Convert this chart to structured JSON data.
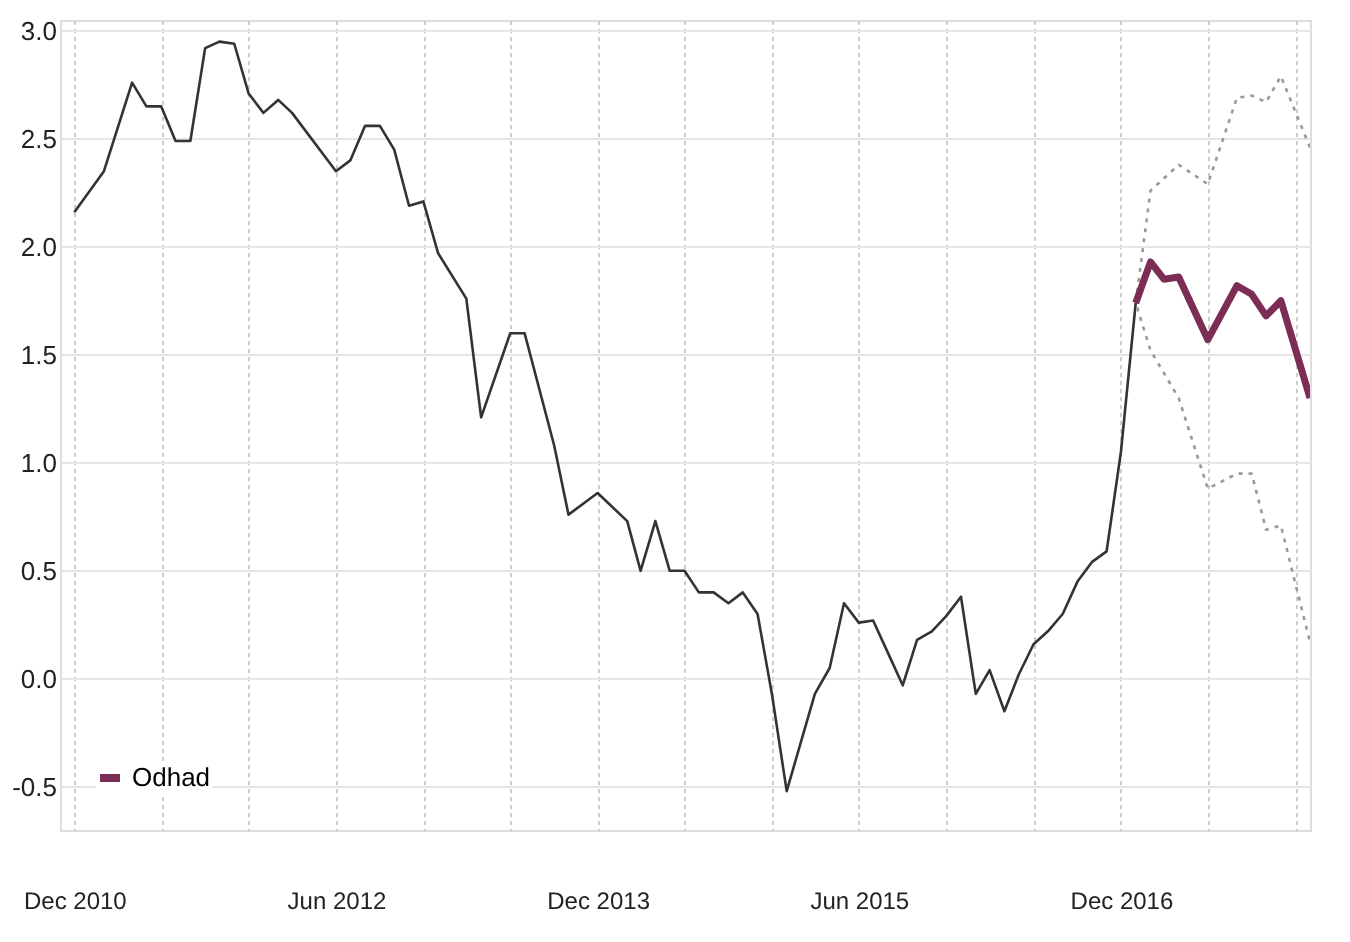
{
  "chart_data": {
    "type": "line",
    "xlim": [
      "2010-11",
      "2018-01"
    ],
    "xticks": [
      {
        "value": "2010-12",
        "label": "Dec 2010"
      },
      {
        "value": "2011-06",
        "label": null
      },
      {
        "value": "2011-12",
        "label": null
      },
      {
        "value": "2012-06",
        "label": "Jun 2012"
      },
      {
        "value": "2012-12",
        "label": null
      },
      {
        "value": "2013-06",
        "label": null
      },
      {
        "value": "2013-12",
        "label": "Dec 2013"
      },
      {
        "value": "2014-06",
        "label": null
      },
      {
        "value": "2014-12",
        "label": null
      },
      {
        "value": "2015-06",
        "label": "Jun 2015"
      },
      {
        "value": "2015-12",
        "label": null
      },
      {
        "value": "2016-06",
        "label": null
      },
      {
        "value": "2016-12",
        "label": "Dec 2016"
      },
      {
        "value": "2017-06",
        "label": null
      },
      {
        "value": "2017-12",
        "label": null
      }
    ],
    "ylim": [
      -0.7,
      3.05
    ],
    "yticks": [
      {
        "value": -0.5,
        "label": "-0.5"
      },
      {
        "value": 0,
        "label": "0.0"
      },
      {
        "value": 0.5,
        "label": "0.5"
      },
      {
        "value": 1,
        "label": "1.0"
      },
      {
        "value": 1.5,
        "label": "1.5"
      },
      {
        "value": 2,
        "label": "2.0"
      },
      {
        "value": 2.5,
        "label": "2.5"
      },
      {
        "value": 3,
        "label": "3.0"
      }
    ],
    "grid": true,
    "legend": "bottom left",
    "series": [
      {
        "color": "#333333",
        "line_style": "solid",
        "x": [
          "2010-12",
          "2011-02",
          "2011-04",
          "2011-05",
          "2011-06",
          "2011-07",
          "2011-08",
          "2011-09",
          "2011-10",
          "2011-11",
          "2011-12",
          "2012-01",
          "2012-02",
          "2012-03",
          "2012-06",
          "2012-07",
          "2012-08",
          "2012-09",
          "2012-10",
          "2012-11",
          "2012-12",
          "2013-01",
          "2013-03",
          "2013-04",
          "2013-06",
          "2013-07",
          "2013-09",
          "2013-10",
          "2013-12",
          "2014-02",
          "2014-03",
          "2014-04",
          "2014-05",
          "2014-06",
          "2014-07",
          "2014-08",
          "2014-09",
          "2014-10",
          "2014-11",
          "2014-12",
          "2015-01",
          "2015-03",
          "2015-04",
          "2015-05",
          "2015-06",
          "2015-07",
          "2015-08",
          "2015-09",
          "2015-10",
          "2015-11",
          "2015-12",
          "2016-01",
          "2016-02",
          "2016-03",
          "2016-04",
          "2016-05",
          "2016-06",
          "2016-07",
          "2016-08",
          "2016-09",
          "2016-10",
          "2016-11",
          "2016-12",
          "2017-01"
        ],
        "values": [
          2.16,
          2.35,
          2.76,
          2.65,
          2.65,
          2.49,
          2.49,
          2.92,
          2.95,
          2.94,
          2.71,
          2.62,
          2.68,
          2.62,
          2.35,
          2.4,
          2.56,
          2.56,
          2.45,
          2.19,
          2.21,
          1.97,
          1.76,
          1.21,
          1.6,
          1.6,
          1.08,
          0.76,
          0.86,
          0.73,
          0.5,
          0.73,
          0.5,
          0.5,
          0.4,
          0.4,
          0.35,
          0.4,
          0.3,
          -0.07,
          -0.52,
          -0.07,
          0.05,
          0.35,
          0.26,
          0.27,
          0.12,
          -0.03,
          0.18,
          0.22,
          0.29,
          0.38,
          -0.07,
          0.04,
          -0.15,
          0.02,
          0.16,
          0.22,
          0.3,
          0.45,
          0.54,
          0.59,
          1.05,
          1.74
        ]
      },
      {
        "color": "#999999",
        "line_style": "dotted",
        "x": [
          "2018-01",
          "2017-11",
          "2017-10",
          "2017-09",
          "2017-08",
          "2017-06",
          "2017-04",
          "2017-02",
          "2017-01",
          "2017-02",
          "2017-04",
          "2017-06",
          "2017-08",
          "2017-09",
          "2017-10",
          "2017-11",
          "2018-01"
        ],
        "values": [
          2.46,
          2.79,
          2.67,
          2.7,
          2.69,
          2.29,
          2.38,
          2.26,
          1.74,
          1.52,
          1.3,
          0.88,
          0.95,
          0.95,
          0.69,
          0.71,
          0.17
        ]
      },
      {
        "name": "Odhad",
        "color": "#7b2d55",
        "line_style": "solid",
        "x": [
          "2017-01",
          "2017-02",
          "2017-03",
          "2017-04",
          "2017-06",
          "2017-08",
          "2017-09",
          "2017-10",
          "2017-11",
          "2018-01"
        ],
        "values": [
          1.74,
          1.93,
          1.85,
          1.86,
          1.57,
          1.82,
          1.78,
          1.68,
          1.75,
          1.3
        ]
      }
    ]
  }
}
